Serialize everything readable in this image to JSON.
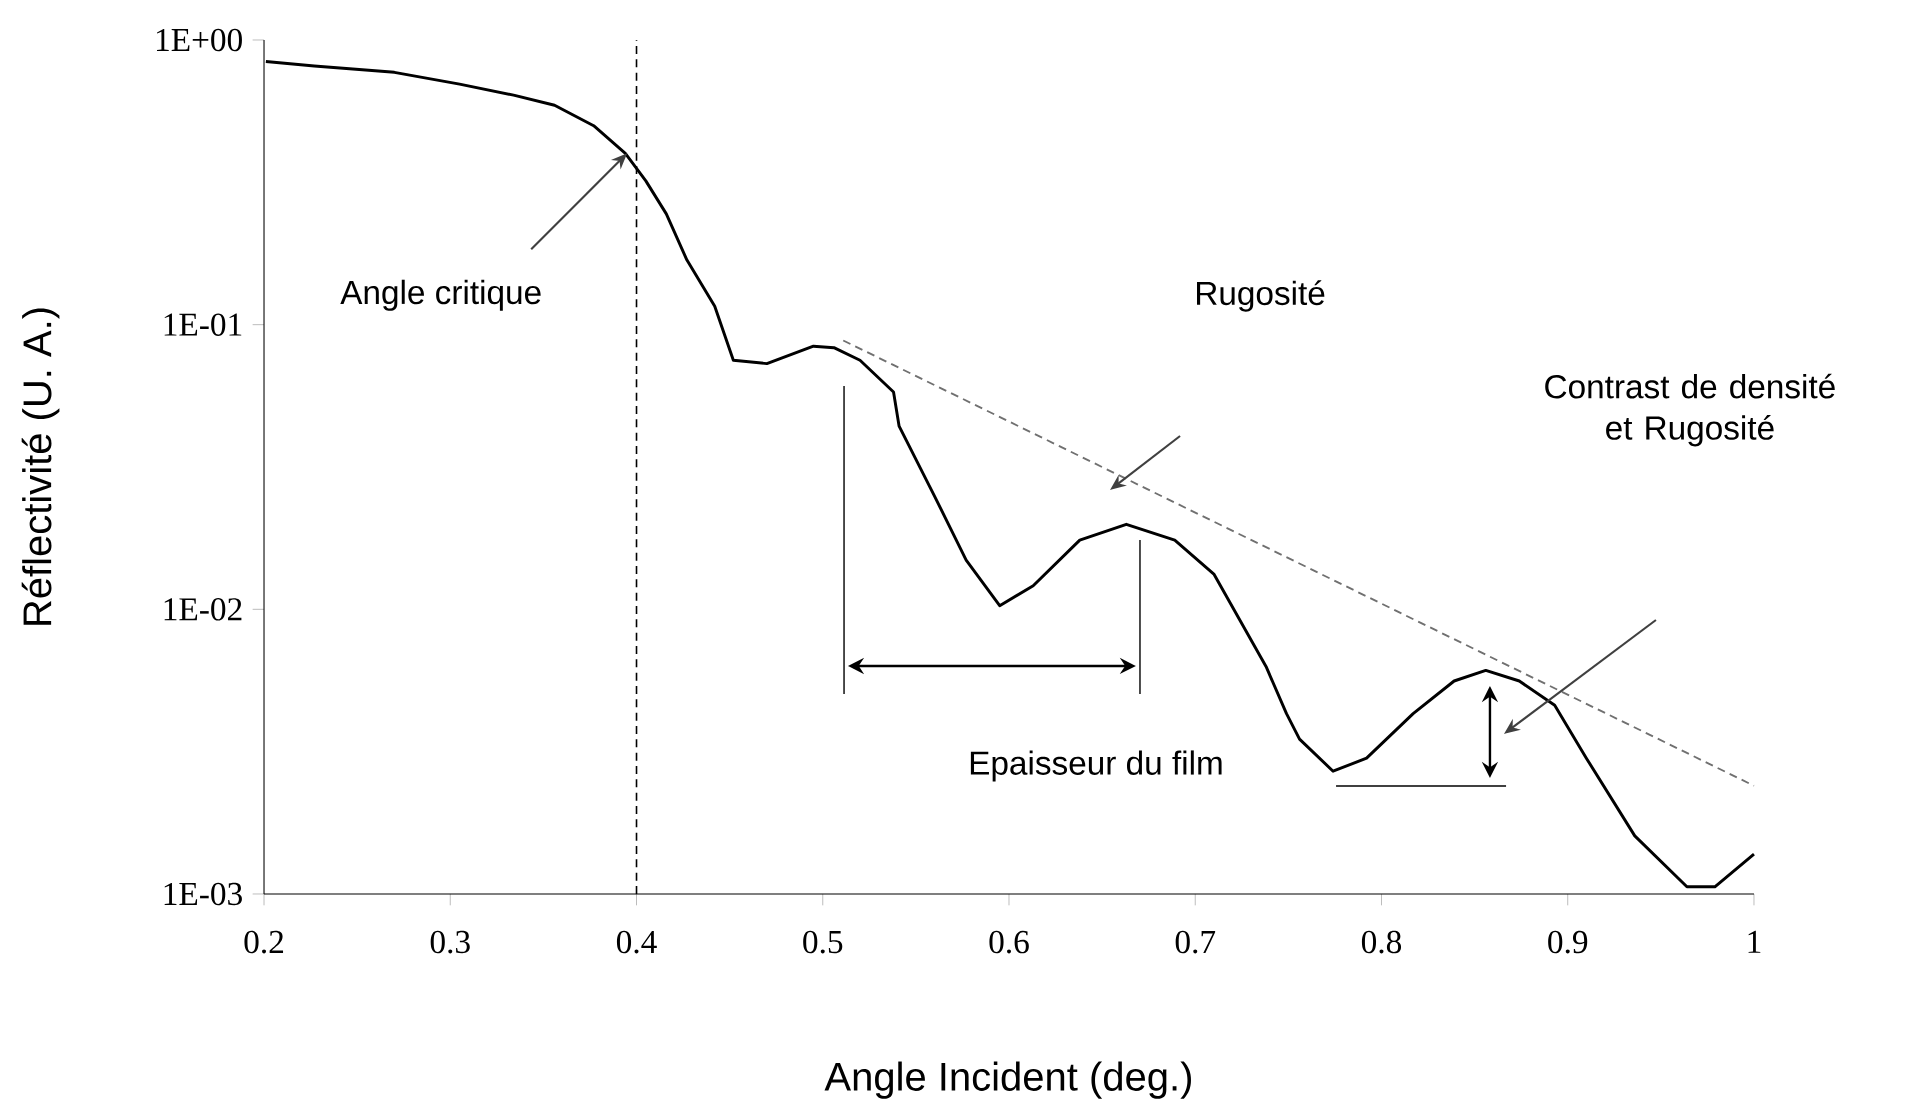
{
  "chart_data": {
    "type": "line",
    "xlabel": "Angle Incident (deg.)",
    "ylabel": "Réflectivité (U. A.)",
    "xlim": [
      0.2,
      1
    ],
    "xticks": [
      0.2,
      0.3,
      0.4,
      0.5,
      0.6,
      0.7,
      0.8,
      0.9,
      1
    ],
    "ylim": [
      0.001,
      1
    ],
    "yticks": [
      {
        "value": 0.001,
        "label": "1E-03"
      },
      {
        "value": 0.01,
        "label": "1E-02"
      },
      {
        "value": 0.1,
        "label": "1E-01"
      },
      {
        "value": 1,
        "label": "1E+00"
      }
    ],
    "log": "y",
    "series": [
      {
        "color": "#000000",
        "x": [
          0.201,
          0.227,
          0.27,
          0.305,
          0.334,
          0.356,
          0.377,
          0.394,
          0.405,
          0.416,
          0.427,
          0.442,
          0.452,
          0.47,
          0.495,
          0.506,
          0.52,
          0.538,
          0.541,
          0.56,
          0.577,
          0.595,
          0.613,
          0.638,
          0.663,
          0.689,
          0.71,
          0.738,
          0.749,
          0.756,
          0.774,
          0.792,
          0.817,
          0.839,
          0.856,
          0.874,
          0.893,
          0.91,
          0.936,
          0.964,
          0.979,
          1.0
        ],
        "values": [
          0.84,
          0.81,
          0.77,
          0.7,
          0.64,
          0.59,
          0.5,
          0.4,
          0.32,
          0.245,
          0.169,
          0.116,
          0.075,
          0.073,
          0.084,
          0.083,
          0.075,
          0.058,
          0.044,
          0.025,
          0.0149,
          0.0103,
          0.0121,
          0.0175,
          0.0199,
          0.0175,
          0.0133,
          0.0063,
          0.0043,
          0.0035,
          0.0027,
          0.003,
          0.0043,
          0.0056,
          0.0061,
          0.0056,
          0.0046,
          0.003,
          0.0016,
          0.00106,
          0.00106,
          0.00138
        ]
      },
      {
        "type": "line",
        "color": "#707070",
        "line_style": "dashed",
        "x": [
          0.511,
          1.0
        ],
        "values": [
          0.088,
          0.0024
        ]
      }
    ],
    "ref_lines": [
      {
        "axis": "x",
        "value": 0.4,
        "line_style": "dashed",
        "color": "#000000"
      }
    ],
    "annotations": [
      {
        "text": "Angle critique",
        "x": 0.395,
        "y": 0.4
      },
      "Rugosité",
      "Epaisseur du film",
      "Contrast de densité et Rugosité"
    ]
  }
}
